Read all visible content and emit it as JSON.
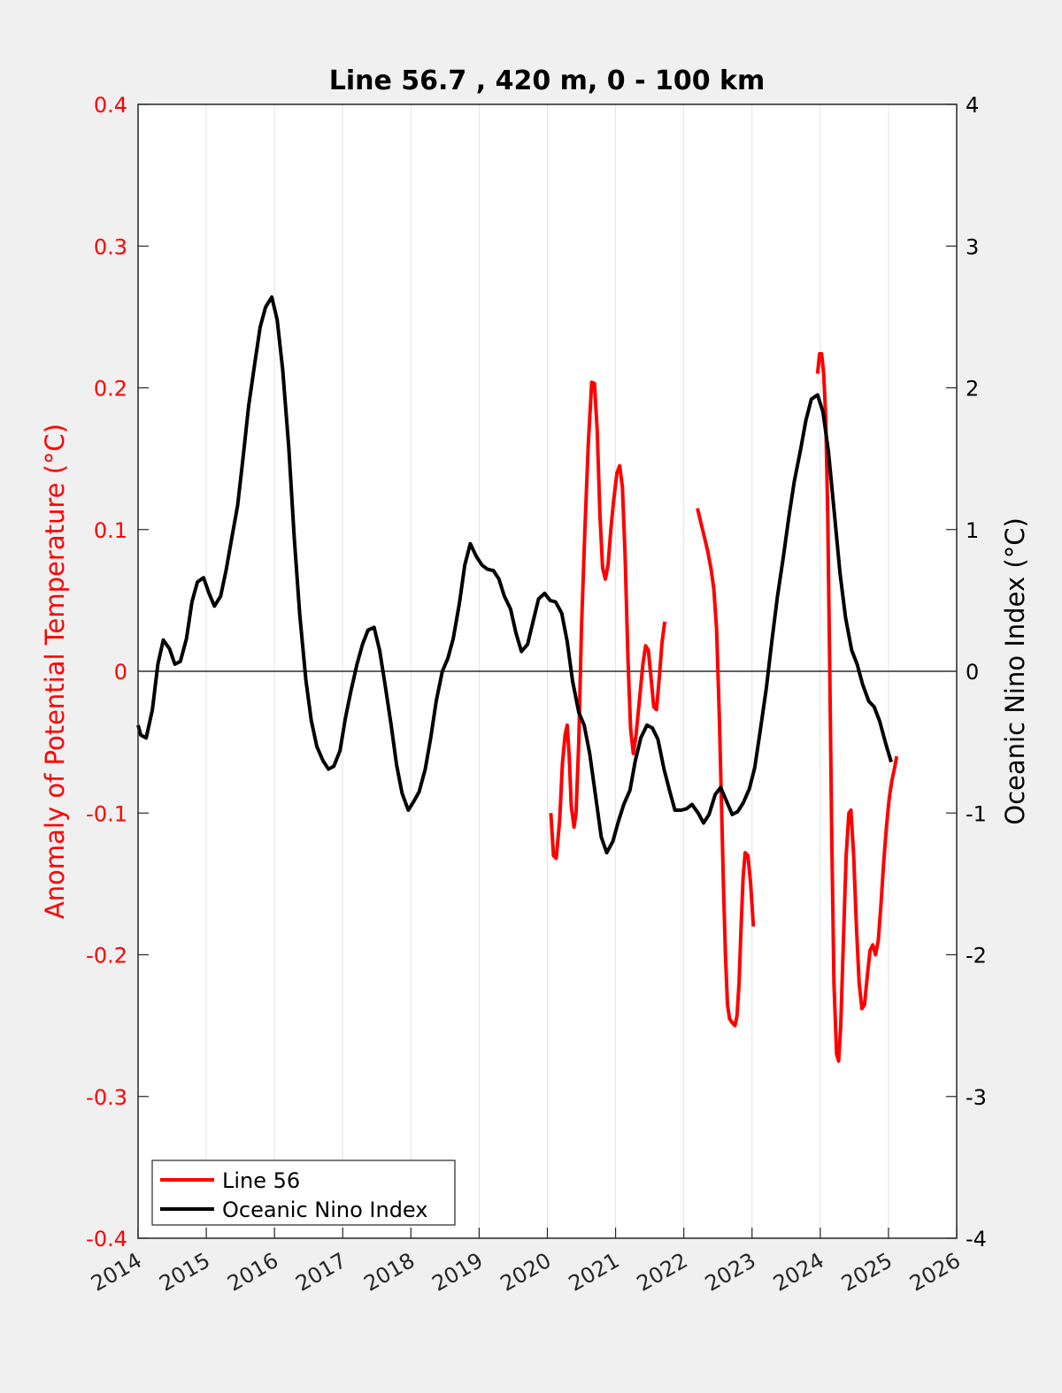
{
  "chart_data": {
    "type": "line",
    "title": "Line 56.7 , 420 m, 0 - 100 km",
    "ylabel_left": "Anomaly of Potential Temperature (°C)",
    "ylabel_right": "Oceanic Nino Index (°C)",
    "xlim": [
      2014,
      2026
    ],
    "ylim_left": [
      -0.4,
      0.4
    ],
    "ylim_right": [
      -4,
      4
    ],
    "x_ticks": [
      "2014",
      "2015",
      "2016",
      "2017",
      "2018",
      "2019",
      "2020",
      "2021",
      "2022",
      "2023",
      "2024",
      "2025",
      "2026"
    ],
    "y_ticks_left": [
      "0.4",
      "0.3",
      "0.2",
      "0.1",
      "0",
      "-0.1",
      "-0.2",
      "-0.3",
      "-0.4"
    ],
    "y_ticks_right": [
      "4",
      "3",
      "2",
      "1",
      "0",
      "-1",
      "-2",
      "-3",
      "-4"
    ],
    "grid_x": true,
    "zero_line": true,
    "legend_position": "bottom-left",
    "colors": {
      "left_axis": "#ff0000",
      "right_axis": "#000000"
    },
    "series": [
      {
        "name": "Line 56",
        "axis": "left",
        "color": "#ff0000",
        "segments": [
          [
            [
              2020.05,
              -0.1
            ],
            [
              2020.09,
              -0.13
            ],
            [
              2020.13,
              -0.132
            ],
            [
              2020.18,
              -0.105
            ],
            [
              2020.22,
              -0.065
            ],
            [
              2020.26,
              -0.045
            ],
            [
              2020.29,
              -0.038
            ],
            [
              2020.32,
              -0.06
            ],
            [
              2020.35,
              -0.095
            ],
            [
              2020.39,
              -0.11
            ],
            [
              2020.42,
              -0.1
            ],
            [
              2020.46,
              -0.05
            ],
            [
              2020.5,
              0.03
            ],
            [
              2020.55,
              0.1
            ],
            [
              2020.6,
              0.16
            ],
            [
              2020.65,
              0.204
            ],
            [
              2020.69,
              0.203
            ],
            [
              2020.73,
              0.17
            ],
            [
              2020.77,
              0.11
            ],
            [
              2020.81,
              0.073
            ],
            [
              2020.85,
              0.065
            ],
            [
              2020.89,
              0.075
            ],
            [
              2020.93,
              0.1
            ],
            [
              2020.97,
              0.12
            ],
            [
              2021.02,
              0.14
            ],
            [
              2021.06,
              0.145
            ],
            [
              2021.1,
              0.13
            ],
            [
              2021.14,
              0.08
            ],
            [
              2021.18,
              0.01
            ],
            [
              2021.22,
              -0.04
            ],
            [
              2021.26,
              -0.058
            ],
            [
              2021.3,
              -0.045
            ],
            [
              2021.35,
              -0.02
            ],
            [
              2021.4,
              0.005
            ],
            [
              2021.44,
              0.018
            ],
            [
              2021.48,
              0.015
            ],
            [
              2021.52,
              -0.005
            ],
            [
              2021.56,
              -0.025
            ],
            [
              2021.6,
              -0.027
            ],
            [
              2021.64,
              -0.005
            ],
            [
              2021.68,
              0.02
            ],
            [
              2021.72,
              0.035
            ]
          ],
          [
            [
              2022.2,
              0.115
            ],
            [
              2022.25,
              0.105
            ],
            [
              2022.3,
              0.095
            ],
            [
              2022.35,
              0.085
            ],
            [
              2022.4,
              0.072
            ],
            [
              2022.44,
              0.058
            ],
            [
              2022.48,
              0.03
            ],
            [
              2022.52,
              -0.03
            ],
            [
              2022.55,
              -0.09
            ],
            [
              2022.58,
              -0.15
            ],
            [
              2022.61,
              -0.2
            ],
            [
              2022.64,
              -0.235
            ],
            [
              2022.67,
              -0.245
            ],
            [
              2022.71,
              -0.248
            ],
            [
              2022.75,
              -0.25
            ],
            [
              2022.78,
              -0.243
            ],
            [
              2022.81,
              -0.22
            ],
            [
              2022.84,
              -0.18
            ],
            [
              2022.87,
              -0.145
            ],
            [
              2022.9,
              -0.128
            ],
            [
              2022.94,
              -0.13
            ],
            [
              2022.98,
              -0.15
            ],
            [
              2023.02,
              -0.18
            ]
          ],
          [
            [
              2023.96,
              0.21
            ],
            [
              2023.99,
              0.224
            ],
            [
              2024.02,
              0.224
            ],
            [
              2024.05,
              0.21
            ],
            [
              2024.08,
              0.18
            ],
            [
              2024.11,
              0.11
            ],
            [
              2024.14,
              0.0
            ],
            [
              2024.17,
              -0.12
            ],
            [
              2024.2,
              -0.22
            ],
            [
              2024.24,
              -0.27
            ],
            [
              2024.27,
              -0.275
            ],
            [
              2024.3,
              -0.25
            ],
            [
              2024.34,
              -0.19
            ],
            [
              2024.38,
              -0.13
            ],
            [
              2024.42,
              -0.1
            ],
            [
              2024.45,
              -0.098
            ],
            [
              2024.49,
              -0.13
            ],
            [
              2024.53,
              -0.18
            ],
            [
              2024.57,
              -0.22
            ],
            [
              2024.61,
              -0.238
            ],
            [
              2024.65,
              -0.235
            ],
            [
              2024.69,
              -0.215
            ],
            [
              2024.73,
              -0.197
            ],
            [
              2024.77,
              -0.193
            ],
            [
              2024.81,
              -0.2
            ],
            [
              2024.85,
              -0.19
            ],
            [
              2024.89,
              -0.165
            ],
            [
              2024.93,
              -0.135
            ],
            [
              2024.97,
              -0.11
            ],
            [
              2025.01,
              -0.09
            ],
            [
              2025.05,
              -0.077
            ],
            [
              2025.09,
              -0.068
            ],
            [
              2025.12,
              -0.06
            ]
          ]
        ]
      },
      {
        "name": "Oceanic Nino Index",
        "axis": "right",
        "color": "#000000",
        "points": [
          [
            2014.0,
            -0.38
          ],
          [
            2014.04,
            -0.45
          ],
          [
            2014.12,
            -0.47
          ],
          [
            2014.21,
            -0.27
          ],
          [
            2014.29,
            0.05
          ],
          [
            2014.37,
            0.22
          ],
          [
            2014.46,
            0.16
          ],
          [
            2014.54,
            0.05
          ],
          [
            2014.62,
            0.07
          ],
          [
            2014.71,
            0.23
          ],
          [
            2014.79,
            0.49
          ],
          [
            2014.87,
            0.63
          ],
          [
            2014.96,
            0.66
          ],
          [
            2015.04,
            0.55
          ],
          [
            2015.12,
            0.46
          ],
          [
            2015.21,
            0.53
          ],
          [
            2015.29,
            0.71
          ],
          [
            2015.37,
            0.93
          ],
          [
            2015.46,
            1.17
          ],
          [
            2015.54,
            1.51
          ],
          [
            2015.62,
            1.87
          ],
          [
            2015.71,
            2.17
          ],
          [
            2015.79,
            2.43
          ],
          [
            2015.87,
            2.57
          ],
          [
            2015.96,
            2.64
          ],
          [
            2016.04,
            2.48
          ],
          [
            2016.12,
            2.13
          ],
          [
            2016.21,
            1.57
          ],
          [
            2016.29,
            0.94
          ],
          [
            2016.37,
            0.4
          ],
          [
            2016.46,
            -0.06
          ],
          [
            2016.54,
            -0.35
          ],
          [
            2016.62,
            -0.53
          ],
          [
            2016.71,
            -0.63
          ],
          [
            2016.79,
            -0.69
          ],
          [
            2016.87,
            -0.67
          ],
          [
            2016.96,
            -0.56
          ],
          [
            2017.04,
            -0.33
          ],
          [
            2017.12,
            -0.14
          ],
          [
            2017.21,
            0.05
          ],
          [
            2017.29,
            0.19
          ],
          [
            2017.37,
            0.29
          ],
          [
            2017.46,
            0.31
          ],
          [
            2017.54,
            0.15
          ],
          [
            2017.62,
            -0.09
          ],
          [
            2017.71,
            -0.38
          ],
          [
            2017.79,
            -0.66
          ],
          [
            2017.87,
            -0.86
          ],
          [
            2017.96,
            -0.98
          ],
          [
            2018.04,
            -0.92
          ],
          [
            2018.12,
            -0.85
          ],
          [
            2018.21,
            -0.69
          ],
          [
            2018.29,
            -0.47
          ],
          [
            2018.37,
            -0.21
          ],
          [
            2018.46,
            0.0
          ],
          [
            2018.54,
            0.09
          ],
          [
            2018.62,
            0.23
          ],
          [
            2018.71,
            0.48
          ],
          [
            2018.79,
            0.75
          ],
          [
            2018.87,
            0.9
          ],
          [
            2018.96,
            0.81
          ],
          [
            2019.04,
            0.75
          ],
          [
            2019.12,
            0.72
          ],
          [
            2019.21,
            0.71
          ],
          [
            2019.29,
            0.65
          ],
          [
            2019.37,
            0.53
          ],
          [
            2019.46,
            0.44
          ],
          [
            2019.54,
            0.27
          ],
          [
            2019.62,
            0.14
          ],
          [
            2019.71,
            0.19
          ],
          [
            2019.79,
            0.35
          ],
          [
            2019.87,
            0.51
          ],
          [
            2019.96,
            0.55
          ],
          [
            2020.04,
            0.5
          ],
          [
            2020.12,
            0.49
          ],
          [
            2020.21,
            0.41
          ],
          [
            2020.29,
            0.21
          ],
          [
            2020.37,
            -0.07
          ],
          [
            2020.46,
            -0.29
          ],
          [
            2020.54,
            -0.38
          ],
          [
            2020.62,
            -0.58
          ],
          [
            2020.71,
            -0.89
          ],
          [
            2020.79,
            -1.17
          ],
          [
            2020.87,
            -1.28
          ],
          [
            2020.96,
            -1.2
          ],
          [
            2021.04,
            -1.06
          ],
          [
            2021.12,
            -0.94
          ],
          [
            2021.21,
            -0.84
          ],
          [
            2021.29,
            -0.63
          ],
          [
            2021.37,
            -0.47
          ],
          [
            2021.46,
            -0.38
          ],
          [
            2021.54,
            -0.4
          ],
          [
            2021.62,
            -0.48
          ],
          [
            2021.71,
            -0.69
          ],
          [
            2021.79,
            -0.84
          ],
          [
            2021.87,
            -0.98
          ],
          [
            2021.96,
            -0.98
          ],
          [
            2022.04,
            -0.97
          ],
          [
            2022.12,
            -0.94
          ],
          [
            2022.21,
            -1.0
          ],
          [
            2022.29,
            -1.07
          ],
          [
            2022.37,
            -1.01
          ],
          [
            2022.46,
            -0.87
          ],
          [
            2022.54,
            -0.82
          ],
          [
            2022.62,
            -0.91
          ],
          [
            2022.71,
            -1.01
          ],
          [
            2022.79,
            -0.99
          ],
          [
            2022.87,
            -0.93
          ],
          [
            2022.96,
            -0.83
          ],
          [
            2023.04,
            -0.68
          ],
          [
            2023.12,
            -0.42
          ],
          [
            2023.21,
            -0.12
          ],
          [
            2023.29,
            0.21
          ],
          [
            2023.37,
            0.52
          ],
          [
            2023.46,
            0.81
          ],
          [
            2023.54,
            1.09
          ],
          [
            2023.62,
            1.34
          ],
          [
            2023.71,
            1.56
          ],
          [
            2023.79,
            1.77
          ],
          [
            2023.87,
            1.92
          ],
          [
            2023.96,
            1.95
          ],
          [
            2024.04,
            1.83
          ],
          [
            2024.12,
            1.55
          ],
          [
            2024.21,
            1.1
          ],
          [
            2024.29,
            0.69
          ],
          [
            2024.37,
            0.38
          ],
          [
            2024.46,
            0.15
          ],
          [
            2024.54,
            0.05
          ],
          [
            2024.62,
            -0.09
          ],
          [
            2024.71,
            -0.21
          ],
          [
            2024.79,
            -0.25
          ],
          [
            2024.87,
            -0.35
          ],
          [
            2024.96,
            -0.51
          ],
          [
            2025.04,
            -0.64
          ]
        ]
      }
    ]
  }
}
